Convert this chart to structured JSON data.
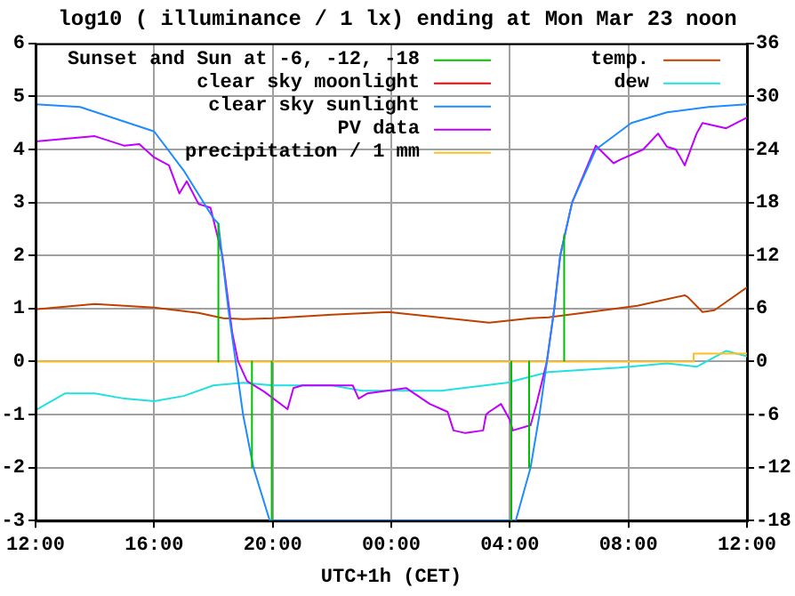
{
  "chart_data": {
    "type": "line",
    "title": "log10 ( illuminance / 1 lx) ending at Mon Mar 23 noon",
    "xlabel": "UTC+1h (CET)",
    "xlim": [
      "--03-22T12:00",
      "--03-23T12:00"
    ],
    "xticks": [
      {
        "value": "--03-22T12:00",
        "label": "12:00"
      },
      {
        "value": "--03-22T16:00",
        "label": "16:00"
      },
      {
        "value": "--03-22T20:00",
        "label": "20:00"
      },
      {
        "value": "--03-23T00:00",
        "label": "00:00"
      },
      {
        "value": "--03-23T04:00",
        "label": "04:00"
      },
      {
        "value": "--03-23T08:00",
        "label": "08:00"
      },
      {
        "value": "--03-23T12:00",
        "label": "12:00"
      }
    ],
    "ylim": [
      -3,
      6
    ],
    "yticks": [
      -3,
      -2,
      -1,
      0,
      1,
      2,
      3,
      4,
      5,
      6
    ],
    "y2lim": [
      -18,
      36
    ],
    "y2ticks": [
      -18,
      -12,
      -6,
      0,
      6,
      12,
      18,
      24,
      30,
      36
    ],
    "grid": true,
    "legend": "top",
    "series": [
      {
        "name": "Sunset and Sun at -6, -12, -18",
        "color": "#00c000",
        "x": [
          "--03-22T18:10",
          "--03-22T18:10",
          null,
          "--03-22T19:18",
          "--03-22T19:18",
          null,
          "--03-22T19:58",
          "--03-22T19:58",
          null,
          "--03-23T04:03",
          "--03-23T04:03",
          null,
          "--03-23T04:39",
          "--03-23T04:39",
          null,
          "--03-23T05:50",
          "--03-23T05:50"
        ],
        "values": [
          2.6,
          0,
          null,
          0,
          -2,
          null,
          0,
          -3,
          null,
          0,
          -3,
          null,
          0,
          -2,
          null,
          0,
          2.4
        ]
      },
      {
        "name": "clear sky moonlight",
        "color": "#ff0000"
      },
      {
        "name": "clear sky sunlight",
        "color": "#1e8cff",
        "x": [
          "--03-22T12:00",
          "--03-22T13:30",
          "--03-22T16:00",
          "--03-22T17:00",
          "--03-22T18:00",
          "--03-22T18:10",
          "--03-22T18:30",
          "--03-22T18:45",
          "--03-22T19:00",
          "--03-22T19:21",
          "--03-22T19:54",
          "--03-23T04:12",
          "--03-23T04:42",
          "--03-23T05:00",
          "--03-23T05:15",
          "--03-23T05:30",
          "--03-23T05:42",
          "--03-23T06:06",
          "--03-23T06:54",
          "--03-23T08:06",
          "--03-23T09:18",
          "--03-23T10:42",
          "--03-23T12:00"
        ],
        "values": [
          4.85,
          4.8,
          4.34,
          3.6,
          2.7,
          2.6,
          1.0,
          0,
          -1,
          -2,
          -3,
          -3,
          -2,
          -1,
          0,
          1,
          2,
          3,
          4,
          4.5,
          4.7,
          4.8,
          4.85
        ]
      },
      {
        "name": "PV data",
        "color": "#c000ff",
        "x": [
          "--03-22T12:00",
          "--03-22T13:00",
          "--03-22T14:00",
          "--03-22T15:00",
          "--03-22T15:30",
          "--03-22T16:00",
          "--03-22T16:30",
          "--03-22T16:51",
          "--03-22T17:06",
          "--03-22T17:30",
          "--03-22T17:54",
          "--03-22T18:18",
          "--03-22T18:38",
          "--03-22T18:50",
          "--03-22T19:08",
          "--03-22T19:43",
          "--03-22T20:30",
          "--03-22T20:42",
          "--03-22T21:00",
          "--03-22T22:00",
          "--03-22T22:42",
          "--03-22T22:54",
          "--03-22T23:12",
          "--03-23T00:30",
          "--03-23T01:18",
          "--03-23T01:54",
          "--03-23T02:06",
          "--03-23T02:30",
          "--03-23T03:06",
          "--03-23T03:12",
          "--03-23T03:18",
          "--03-23T03:42",
          "--03-23T04:00",
          "--03-23T04:06",
          "--03-23T04:42",
          "--03-23T04:54",
          "--03-23T05:15",
          "--03-23T05:30",
          "--03-23T05:42",
          "--03-23T06:06",
          "--03-23T06:54",
          "--03-23T07:30",
          "--03-23T07:42",
          "--03-23T08:30",
          "--03-23T09:00",
          "--03-23T09:18",
          "--03-23T09:36",
          "--03-23T09:54",
          "--03-23T10:18",
          "--03-23T10:30",
          "--03-23T11:18",
          "--03-23T12:00"
        ],
        "values": [
          4.15,
          4.2,
          4.25,
          4.07,
          4.1,
          3.85,
          3.7,
          3.17,
          3.4,
          2.97,
          2.9,
          2.0,
          0.55,
          0,
          -0.37,
          -0.57,
          -0.9,
          -0.5,
          -0.45,
          -0.45,
          -0.45,
          -0.7,
          -0.6,
          -0.5,
          -0.8,
          -0.95,
          -1.3,
          -1.35,
          -1.3,
          -1.0,
          -0.95,
          -0.8,
          -1.1,
          -1.3,
          -1.2,
          -0.8,
          0,
          1,
          2,
          3,
          4.07,
          3.74,
          3.8,
          4.0,
          4.3,
          4.05,
          4.0,
          3.7,
          4.3,
          4.5,
          4.4,
          4.6
        ]
      },
      {
        "name": "precipitation / 1 mm",
        "color": "#ffc020",
        "x": [
          "--03-22T12:00",
          "--03-23T10:12",
          "--03-23T10:12",
          "--03-23T12:00"
        ],
        "values": [
          0,
          0,
          0.15,
          0.15
        ]
      },
      {
        "name": "temp.",
        "color": "#c04000",
        "axis": "y2",
        "x": [
          "--03-22T12:00",
          "--03-22T14:00",
          "--03-22T16:00",
          "--03-22T17:30",
          "--03-22T18:20",
          "--03-22T19:00",
          "--03-22T20:00",
          "--03-22T22:00",
          "--03-22T23:54",
          "--03-23T03:18",
          "--03-23T04:42",
          "--03-23T05:18",
          "--03-23T06:42",
          "--03-23T08:18",
          "--03-23T09:54",
          "--03-23T10:00",
          "--03-23T10:30",
          "--03-23T10:54",
          "--03-23T12:00"
        ],
        "values": [
          5.9,
          6.5,
          6.1,
          5.5,
          4.9,
          4.8,
          4.9,
          5.3,
          5.6,
          4.4,
          4.9,
          5.0,
          5.6,
          6.3,
          7.5,
          7.3,
          5.6,
          5.8,
          8.4
        ]
      },
      {
        "name": "dew",
        "color": "#20e0e0",
        "axis": "y2",
        "x": [
          "--03-22T12:00",
          "--03-22T13:00",
          "--03-22T14:00",
          "--03-22T15:00",
          "--03-22T16:00",
          "--03-22T17:00",
          "--03-22T18:00",
          "--03-22T19:00",
          "--03-22T20:00",
          "--03-22T22:00",
          "--03-22T23:00",
          "--03-23T01:42",
          "--03-23T03:54",
          "--03-23T05:18",
          "--03-23T07:42",
          "--03-23T09:18",
          "--03-23T10:18",
          "--03-23T11:18",
          "--03-23T12:00"
        ],
        "values": [
          -5.5,
          -3.6,
          -3.6,
          -4.2,
          -4.5,
          -3.9,
          -2.7,
          -2.4,
          -2.7,
          -2.7,
          -3.3,
          -3.3,
          -2.4,
          -1.2,
          -0.7,
          -0.2,
          -0.6,
          1.2,
          0.6
        ]
      }
    ]
  }
}
